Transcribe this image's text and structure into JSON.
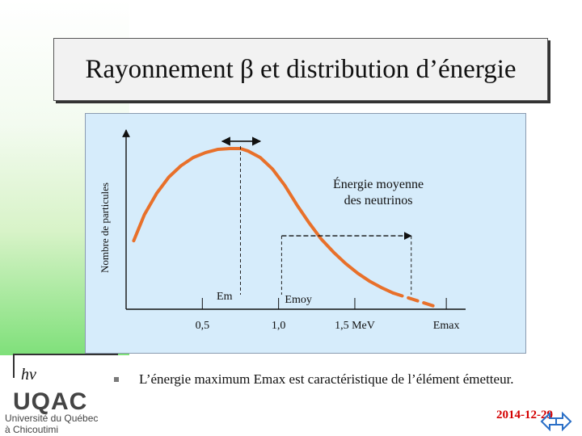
{
  "slide": {
    "title": "Rayonnement β et distribution d’énergie",
    "bullet": "L’énergie maximum Emax est caractéristique de l’élément émetteur.",
    "date": "2014-12-29",
    "hv_label": "hν",
    "logo_text": "UQAC",
    "logo_line1": "Université du Québec",
    "logo_line2": "à Chicoutimi",
    "accent_color": "#e8702a",
    "date_color": "#d40000"
  },
  "chart_data": {
    "type": "line",
    "title": "",
    "xlabel": "",
    "ylabel": "Nombre de particules",
    "x_ticks": [
      {
        "value": 0.5,
        "label": "0,5"
      },
      {
        "value": 1.0,
        "label": "1,0"
      },
      {
        "value": 1.5,
        "label": "1,5 MeV"
      },
      {
        "value": 2.1,
        "label": "Emax"
      }
    ],
    "xlim": [
      0.0,
      2.2
    ],
    "ylim": [
      0,
      1.0
    ],
    "series": [
      {
        "x": [
          0.05,
          0.12,
          0.2,
          0.28,
          0.36,
          0.44,
          0.52,
          0.6,
          0.68,
          0.75,
          0.8,
          0.88,
          0.96,
          1.04,
          1.12,
          1.2,
          1.28,
          1.36,
          1.44,
          1.52,
          1.6,
          1.68,
          1.75
        ],
        "y": [
          0.42,
          0.58,
          0.71,
          0.81,
          0.88,
          0.93,
          0.96,
          0.98,
          0.985,
          0.985,
          0.97,
          0.93,
          0.86,
          0.76,
          0.64,
          0.53,
          0.43,
          0.35,
          0.28,
          0.22,
          0.17,
          0.13,
          0.1
        ]
      },
      {
        "x": [
          1.75,
          1.85,
          1.95,
          2.05
        ],
        "y": [
          0.1,
          0.07,
          0.04,
          0.01
        ],
        "style": "dashed"
      }
    ],
    "annotations": {
      "em_label": "Em",
      "em_x": 0.75,
      "emoy_label": "Emoy",
      "emoy_x": 1.02,
      "emoy_text": "Énergie moyenne des neutrinos",
      "emoy_arrow_end_x": 1.87,
      "emoy_arrow_y": 0.45,
      "peak_arrow_x": [
        0.63,
        0.88
      ],
      "peak_arrow_y": 1.03
    },
    "grid": false,
    "legend": "none"
  }
}
